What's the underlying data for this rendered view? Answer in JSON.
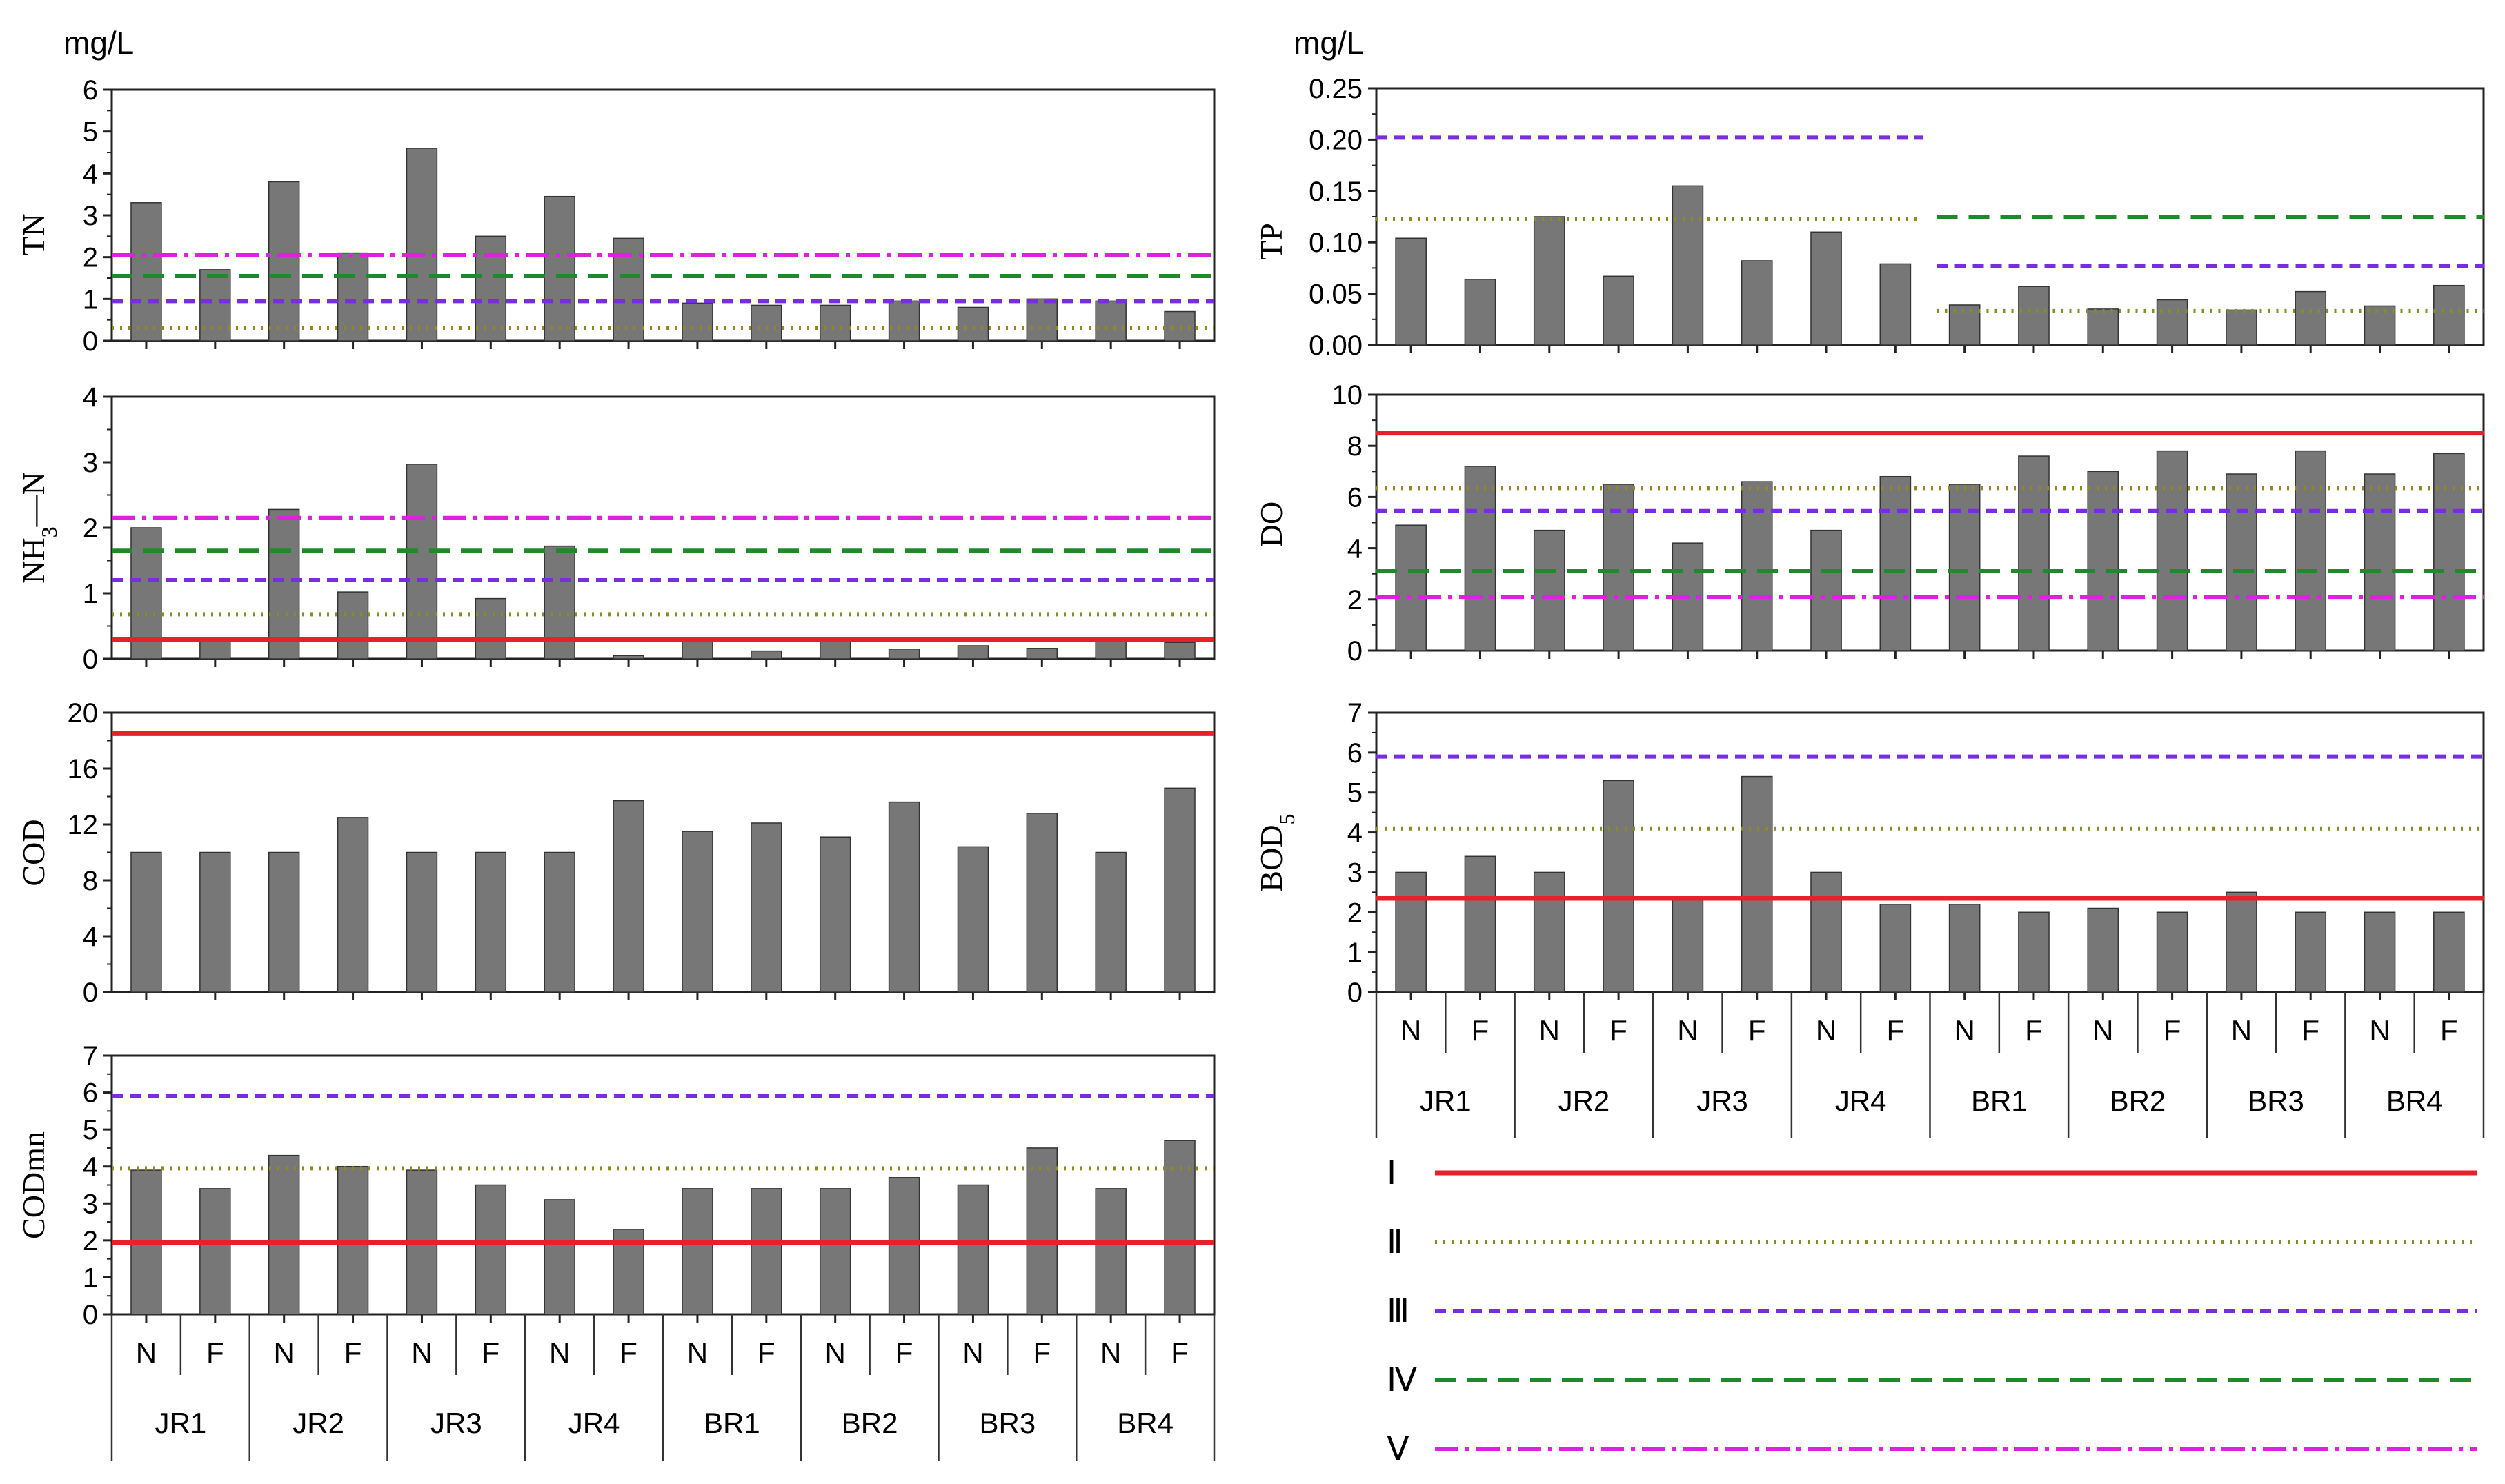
{
  "figure": {
    "unit_left": "mg/L",
    "unit_right": "mg/L"
  },
  "styles": {
    "bar_color": "#777777",
    "grade_colors": {
      "I": "#e8202a",
      "II": "#8c8c1e",
      "III": "#7a2de0",
      "IV": "#1e8a2a",
      "V": "#e020e0"
    }
  },
  "axis_labels": {
    "samples": [
      "N",
      "F",
      "N",
      "F",
      "N",
      "F",
      "N",
      "F",
      "N",
      "F",
      "N",
      "F",
      "N",
      "F",
      "N",
      "F"
    ],
    "sites": [
      "JR1",
      "JR2",
      "JR3",
      "JR4",
      "BR1",
      "BR2",
      "BR3",
      "BR4"
    ]
  },
  "legend": [
    {
      "label": "Ⅰ",
      "grade": "I"
    },
    {
      "label": "Ⅱ",
      "grade": "II"
    },
    {
      "label": "Ⅲ",
      "grade": "III"
    },
    {
      "label": "Ⅳ",
      "grade": "IV"
    },
    {
      "label": "Ⅴ",
      "grade": "V"
    }
  ],
  "chart_data": [
    {
      "id": "TN",
      "type": "bar",
      "ylabel": "TN",
      "title": "",
      "ylim": [
        0,
        6
      ],
      "yticks": [
        0,
        1,
        2,
        3,
        4,
        5,
        6
      ],
      "ytick_labels": [
        "0",
        "1",
        "2",
        "3",
        "4",
        "5",
        "6"
      ],
      "series": [
        {
          "name": "TN",
          "values": [
            3.3,
            1.7,
            3.8,
            2.1,
            4.6,
            2.5,
            3.45,
            2.45,
            0.9,
            0.85,
            0.85,
            0.95,
            0.8,
            1.0,
            0.95,
            0.7
          ]
        }
      ],
      "standards": [
        {
          "grade": "II",
          "segments": [
            [
              0,
              16,
              0.3
            ]
          ]
        },
        {
          "grade": "III",
          "segments": [
            [
              0,
              16,
              0.95
            ]
          ]
        },
        {
          "grade": "IV",
          "segments": [
            [
              0,
              16,
              1.55
            ]
          ]
        },
        {
          "grade": "V",
          "segments": [
            [
              0,
              16,
              2.05
            ]
          ]
        }
      ]
    },
    {
      "id": "TP",
      "type": "bar",
      "ylabel": "TP",
      "title": "",
      "ylim": [
        0,
        0.25
      ],
      "yticks": [
        0,
        0.05,
        0.1,
        0.15,
        0.2,
        0.25
      ],
      "ytick_labels": [
        "0.00",
        "0.05",
        "0.10",
        "0.15",
        "0.20",
        "0.25"
      ],
      "series": [
        {
          "name": "TP",
          "values": [
            0.104,
            0.064,
            0.125,
            0.067,
            0.155,
            0.082,
            0.11,
            0.079,
            0.039,
            0.057,
            0.035,
            0.044,
            0.034,
            0.052,
            0.038,
            0.058
          ]
        }
      ],
      "standards": [
        {
          "grade": "II",
          "segments": [
            [
              0,
              8,
              0.123
            ],
            [
              8,
              16,
              0.033
            ]
          ]
        },
        {
          "grade": "III",
          "segments": [
            [
              0,
              8,
              0.202
            ],
            [
              8,
              16,
              0.077
            ]
          ]
        },
        {
          "grade": "IV",
          "segments": [
            [
              8,
              16,
              0.125
            ]
          ]
        }
      ]
    },
    {
      "id": "NH3N",
      "type": "bar",
      "ylabel": "NH3—N",
      "title": "",
      "ylim": [
        0,
        4
      ],
      "yticks": [
        0,
        1,
        2,
        3,
        4
      ],
      "ytick_labels": [
        "0",
        "1",
        "2",
        "3",
        "4"
      ],
      "series": [
        {
          "name": "NH3-N",
          "values": [
            2.0,
            0.27,
            2.28,
            1.02,
            2.97,
            0.92,
            1.72,
            0.05,
            0.26,
            0.12,
            0.27,
            0.15,
            0.2,
            0.16,
            0.28,
            0.25
          ]
        }
      ],
      "standards": [
        {
          "grade": "I",
          "segments": [
            [
              0,
              16,
              0.3
            ]
          ]
        },
        {
          "grade": "II",
          "segments": [
            [
              0,
              16,
              0.68
            ]
          ]
        },
        {
          "grade": "III",
          "segments": [
            [
              0,
              16,
              1.2
            ]
          ]
        },
        {
          "grade": "IV",
          "segments": [
            [
              0,
              16,
              1.65
            ]
          ]
        },
        {
          "grade": "V",
          "segments": [
            [
              0,
              16,
              2.15
            ]
          ]
        }
      ]
    },
    {
      "id": "DO",
      "type": "bar",
      "ylabel": "DO",
      "title": "",
      "ylim": [
        0,
        10
      ],
      "yticks": [
        0,
        2,
        4,
        6,
        8,
        10
      ],
      "ytick_labels": [
        "0",
        "2",
        "4",
        "6",
        "8",
        "10"
      ],
      "series": [
        {
          "name": "DO",
          "values": [
            4.9,
            7.2,
            4.7,
            6.5,
            4.2,
            6.6,
            4.7,
            6.8,
            6.5,
            7.6,
            7.0,
            7.8,
            6.9,
            7.8,
            6.9,
            7.7
          ]
        }
      ],
      "standards": [
        {
          "grade": "I",
          "segments": [
            [
              0,
              16,
              8.5
            ]
          ]
        },
        {
          "grade": "II",
          "segments": [
            [
              0,
              16,
              6.35
            ]
          ]
        },
        {
          "grade": "III",
          "segments": [
            [
              0,
              16,
              5.45
            ]
          ]
        },
        {
          "grade": "IV",
          "segments": [
            [
              0,
              16,
              3.1
            ]
          ]
        },
        {
          "grade": "V",
          "segments": [
            [
              0,
              16,
              2.1
            ]
          ]
        }
      ]
    },
    {
      "id": "COD",
      "type": "bar",
      "ylabel": "COD",
      "title": "",
      "ylim": [
        0,
        20
      ],
      "yticks": [
        0,
        4,
        8,
        12,
        16,
        20
      ],
      "ytick_labels": [
        "0",
        "4",
        "8",
        "12",
        "16",
        "20"
      ],
      "series": [
        {
          "name": "COD",
          "values": [
            10,
            10,
            10,
            12.5,
            10,
            10,
            10,
            13.7,
            11.5,
            12.1,
            11.1,
            13.6,
            10.4,
            12.8,
            10,
            14.6
          ]
        }
      ],
      "standards": [
        {
          "grade": "I",
          "segments": [
            [
              0,
              16,
              18.5
            ]
          ]
        }
      ]
    },
    {
      "id": "BOD5",
      "type": "bar",
      "ylabel": "BOD5",
      "title": "",
      "ylim": [
        0,
        7
      ],
      "yticks": [
        0,
        1,
        2,
        3,
        4,
        5,
        6,
        7
      ],
      "ytick_labels": [
        "0",
        "1",
        "2",
        "3",
        "4",
        "5",
        "6",
        "7"
      ],
      "series": [
        {
          "name": "BOD5",
          "values": [
            3.0,
            3.4,
            3.0,
            5.3,
            2.4,
            5.4,
            3.0,
            2.2,
            2.2,
            2.0,
            2.1,
            2.0,
            2.5,
            2.0,
            2.0,
            2.0
          ]
        }
      ],
      "standards": [
        {
          "grade": "I",
          "segments": [
            [
              0,
              16,
              2.35
            ]
          ]
        },
        {
          "grade": "II",
          "segments": [
            [
              0,
              16,
              4.1
            ]
          ]
        },
        {
          "grade": "III",
          "segments": [
            [
              0,
              16,
              5.9
            ]
          ]
        }
      ]
    },
    {
      "id": "CODmn",
      "type": "bar",
      "ylabel": "CODmn",
      "title": "",
      "ylim": [
        0,
        7
      ],
      "yticks": [
        0,
        1,
        2,
        3,
        4,
        5,
        6,
        7
      ],
      "ytick_labels": [
        "0",
        "1",
        "2",
        "3",
        "4",
        "5",
        "6",
        "7"
      ],
      "series": [
        {
          "name": "CODmn",
          "values": [
            3.9,
            3.4,
            4.3,
            4.0,
            3.9,
            3.5,
            3.1,
            2.3,
            3.4,
            3.4,
            3.4,
            3.7,
            3.5,
            4.5,
            3.4,
            4.7
          ]
        }
      ],
      "standards": [
        {
          "grade": "I",
          "segments": [
            [
              0,
              16,
              1.95
            ]
          ]
        },
        {
          "grade": "II",
          "segments": [
            [
              0,
              16,
              3.95
            ]
          ]
        },
        {
          "grade": "III",
          "segments": [
            [
              0,
              16,
              5.9
            ]
          ]
        }
      ]
    }
  ]
}
